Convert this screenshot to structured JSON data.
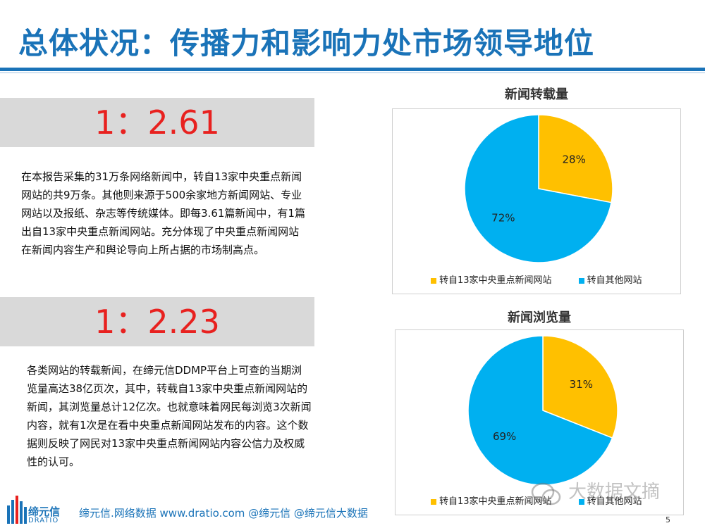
{
  "title": "总体状况：传播力和影响力处市场领导地位",
  "section1": {
    "ratio": "1：2.61",
    "text": "在本报告采集的31万条网络新闻中，转自13家中央重点新闻网站的共9万条。其他则来源于500余家地方新闻网站、专业网站以及报纸、杂志等传统媒体。即每3.61篇新闻中，有1篇出自13家中央重点新闻网站。充分体现了中央重点新闻网站在新闻内容生产和舆论导向上所占据的市场制高点。"
  },
  "section2": {
    "ratio": "1：2.23",
    "text": "各类网站的转载新闻，在缔元信DDMP平台上可查的当期浏览量高达38亿页次，其中，转载自13家中央重点新闻网站的新闻，其浏览量总计12亿次。也就意味着网民每浏览3次新闻内容，就有1次是在看中央重点新闻网站发布的内容。这个数据则反映了网民对13家中央重点新闻网站内容公信力及权威性的认可。"
  },
  "colors": {
    "accent": "#1a73b8",
    "ratio": "#e8211f",
    "series_a": "#ffc000",
    "series_b": "#00b0f0"
  },
  "chart_data": [
    {
      "type": "pie",
      "title": "新闻转载量",
      "categories": [
        "转自13家中央重点新闻网站",
        "转自其他网站"
      ],
      "values": [
        28,
        72
      ],
      "labels": [
        "28%",
        "72%"
      ],
      "legend": "bottom"
    },
    {
      "type": "pie",
      "title": "新闻浏览量",
      "categories": [
        "转自13家中央重点新闻网站",
        "转自其他网站"
      ],
      "values": [
        31,
        69
      ],
      "labels": [
        "31%",
        "69%"
      ],
      "legend": "bottom"
    }
  ],
  "footer": "缔元信.网络数据 www.dratio.com @缔元信 @缔元信大数据",
  "logo": {
    "name": "缔元信",
    "sub": "DRATIO"
  },
  "page_number": "5",
  "watermark": "大数据文摘"
}
